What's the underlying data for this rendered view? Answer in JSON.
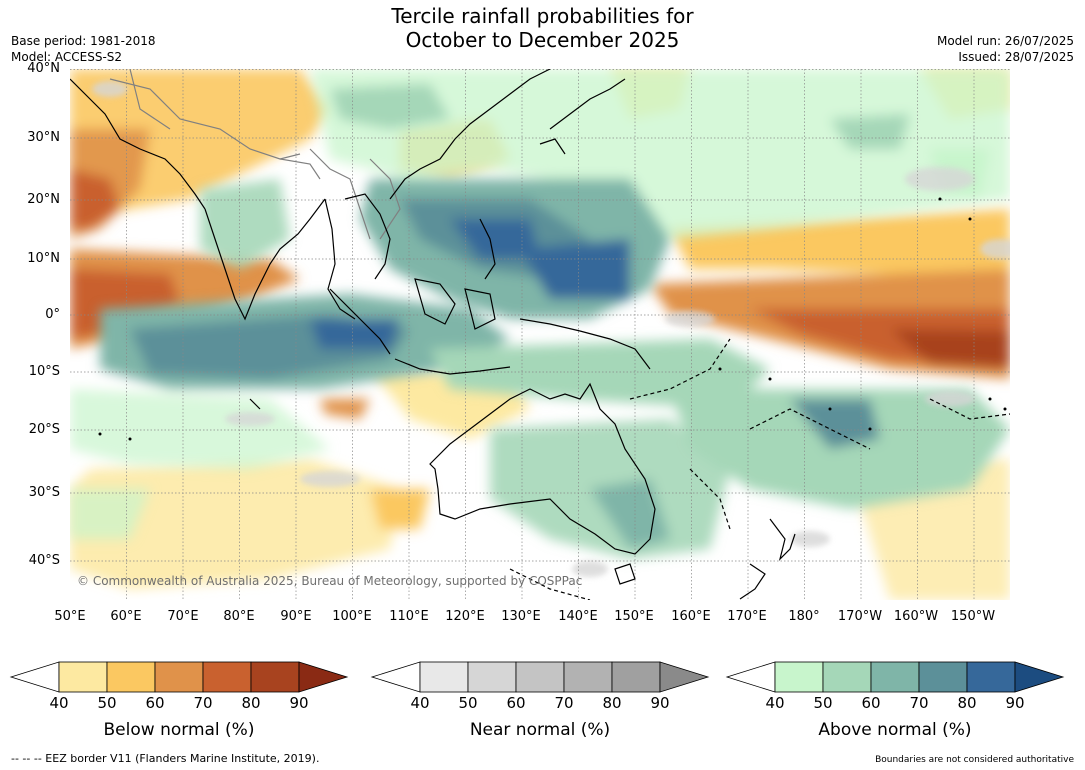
{
  "title": {
    "line1": "Tercile rainfall probabilities for",
    "line2": "October to December 2025"
  },
  "meta": {
    "base_period": "Base period: 1981-2018",
    "model": "Model: ACCESS-S2",
    "model_run": "Model run: 26/07/2025",
    "issued": "Issued: 28/07/2025"
  },
  "map": {
    "latitude_labels": [
      "40°N",
      "30°N",
      "20°N",
      "10°N",
      "0°",
      "10°S",
      "20°S",
      "30°S",
      "40°S"
    ],
    "longitude_labels": [
      "50°E",
      "60°E",
      "70°E",
      "80°E",
      "90°E",
      "100°E",
      "110°E",
      "120°E",
      "130°E",
      "140°E",
      "150°E",
      "160°E",
      "170°E",
      "180°",
      "170°W",
      "160°W",
      "150°W"
    ],
    "copyright": "© Commonwealth of Australia 2025, Bureau of Meteorology, supported by COSPPac",
    "colors": {
      "ocean_background": "#ffffff",
      "coastline": "#000000",
      "country_borders": "#808080",
      "gridlines": "#888888"
    }
  },
  "colorbars": [
    {
      "label": "Below normal (%)",
      "ticks": [
        "40",
        "50",
        "60",
        "70",
        "80",
        "90"
      ],
      "colors": [
        "#ffffff",
        "#fde9a1",
        "#fbc861",
        "#e0924a",
        "#c9612f",
        "#a8431f",
        "#8a2a14"
      ]
    },
    {
      "label": "Near normal (%)",
      "ticks": [
        "40",
        "50",
        "60",
        "70",
        "80",
        "90"
      ],
      "colors": [
        "#ffffff",
        "#e8e8e8",
        "#d6d6d6",
        "#c4c4c4",
        "#b2b2b2",
        "#a0a0a0",
        "#8a8a8a"
      ]
    },
    {
      "label": "Above normal (%)",
      "ticks": [
        "40",
        "50",
        "60",
        "70",
        "80",
        "90"
      ],
      "colors": [
        "#ffffff",
        "#c8f5cc",
        "#a5d7b8",
        "#7fb5a8",
        "#5c9099",
        "#36689a",
        "#1c4c80"
      ]
    }
  ],
  "footer": {
    "eez": "--  --  -- EEZ border V11 (Flanders Marine Institute, 2019).",
    "boundaries": "Boundaries are not considered authoritative"
  }
}
